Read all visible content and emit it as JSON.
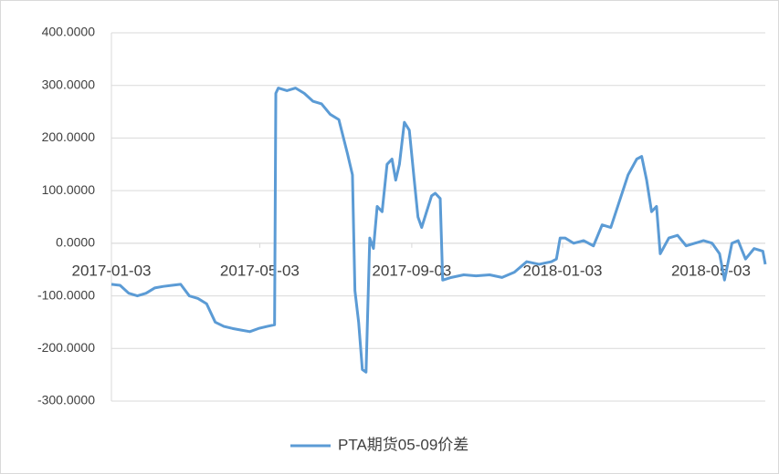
{
  "chart_data": {
    "type": "line",
    "ylim": [
      -300,
      400
    ],
    "yticks": [
      {
        "value": 400,
        "label": "400.0000"
      },
      {
        "value": 300,
        "label": "300.0000"
      },
      {
        "value": 200,
        "label": "200.0000"
      },
      {
        "value": 100,
        "label": "100.0000"
      },
      {
        "value": 0,
        "label": "0.0000"
      },
      {
        "value": -100,
        "label": "-100.0000"
      },
      {
        "value": -200,
        "label": "-200.0000"
      },
      {
        "value": -300,
        "label": "-300.0000"
      }
    ],
    "xlim": [
      "2017-01-03",
      "2018-06-16"
    ],
    "xticks": [
      "2017-01-03",
      "2017-05-03",
      "2017-09-03",
      "2018-01-03",
      "2018-05-03"
    ],
    "grid": true,
    "legend": "bottom",
    "x": [
      "2017-01-03",
      "2017-01-10",
      "2017-01-17",
      "2017-01-24",
      "2017-01-31",
      "2017-02-07",
      "2017-02-14",
      "2017-02-21",
      "2017-02-28",
      "2017-03-07",
      "2017-03-14",
      "2017-03-21",
      "2017-03-28",
      "2017-04-04",
      "2017-04-11",
      "2017-04-18",
      "2017-04-25",
      "2017-05-02",
      "2017-05-09",
      "2017-05-15",
      "2017-05-16",
      "2017-05-18",
      "2017-05-25",
      "2017-06-01",
      "2017-06-08",
      "2017-06-15",
      "2017-06-22",
      "2017-06-29",
      "2017-07-06",
      "2017-07-13",
      "2017-07-17",
      "2017-07-19",
      "2017-07-22",
      "2017-07-25",
      "2017-07-28",
      "2017-07-31",
      "2017-08-03",
      "2017-08-06",
      "2017-08-10",
      "2017-08-14",
      "2017-08-18",
      "2017-08-21",
      "2017-08-24",
      "2017-08-28",
      "2017-09-01",
      "2017-09-05",
      "2017-09-08",
      "2017-09-11",
      "2017-09-15",
      "2017-09-19",
      "2017-09-22",
      "2017-09-26",
      "2017-09-28",
      "2017-10-05",
      "2017-10-15",
      "2017-10-25",
      "2017-11-05",
      "2017-11-15",
      "2017-11-25",
      "2017-12-05",
      "2017-12-15",
      "2017-12-25",
      "2017-12-29",
      "2018-01-01",
      "2018-01-05",
      "2018-01-12",
      "2018-01-20",
      "2018-01-28",
      "2018-02-04",
      "2018-02-11",
      "2018-02-18",
      "2018-02-25",
      "2018-03-04",
      "2018-03-08",
      "2018-03-12",
      "2018-03-16",
      "2018-03-20",
      "2018-03-23",
      "2018-03-30",
      "2018-04-06",
      "2018-04-13",
      "2018-04-20",
      "2018-04-27",
      "2018-05-04",
      "2018-05-10",
      "2018-05-14",
      "2018-05-20",
      "2018-05-25",
      "2018-05-31",
      "2018-06-07",
      "2018-06-14",
      "2018-06-16"
    ],
    "series": [
      {
        "name": "PTA期货05-09价差",
        "color": "#5b9bd5",
        "values": [
          -78,
          -80,
          -95,
          -100,
          -95,
          -85,
          -82,
          -80,
          -78,
          -100,
          -105,
          -115,
          -150,
          -158,
          -162,
          -165,
          -168,
          -162,
          -158,
          -155,
          285,
          295,
          290,
          295,
          285,
          270,
          265,
          245,
          235,
          170,
          130,
          -90,
          -150,
          -240,
          -245,
          10,
          -10,
          70,
          60,
          150,
          160,
          120,
          150,
          230,
          215,
          120,
          50,
          30,
          60,
          90,
          95,
          85,
          -70,
          -65,
          -60,
          -62,
          -60,
          -65,
          -55,
          -35,
          -40,
          -35,
          -30,
          10,
          10,
          0,
          5,
          -5,
          35,
          30,
          80,
          130,
          160,
          165,
          120,
          60,
          70,
          -20,
          10,
          15,
          -5,
          0,
          5,
          0,
          -20,
          -70,
          0,
          5,
          -30,
          -10,
          -15,
          -40
        ]
      }
    ]
  }
}
